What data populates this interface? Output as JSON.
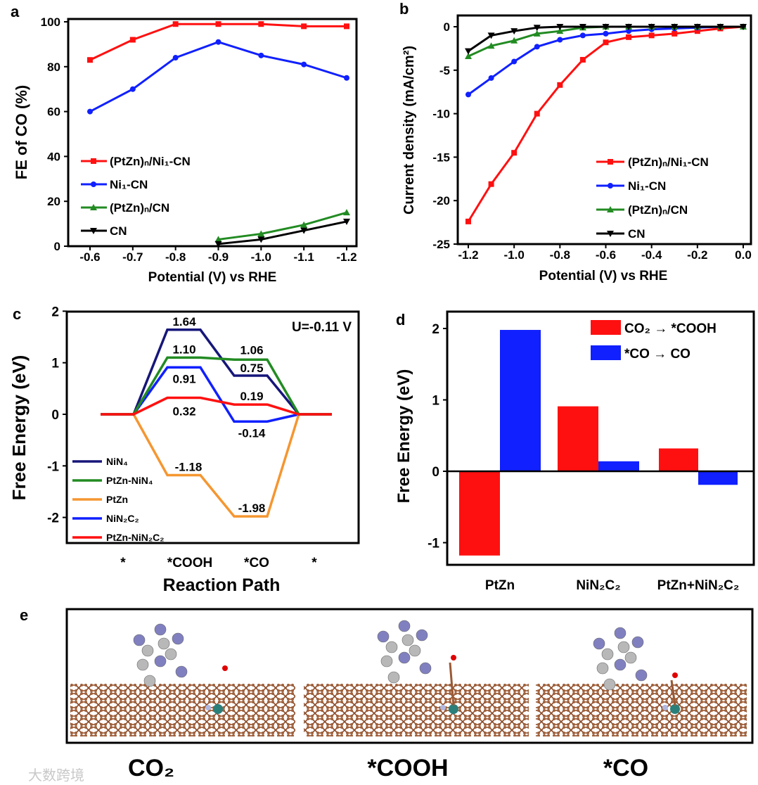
{
  "panel_letters": {
    "a": "a",
    "b": "b",
    "c": "c",
    "d": "d",
    "e": "e"
  },
  "colors": {
    "red": "#ff1010",
    "blue": "#1020ff",
    "green": "#228b22",
    "black": "#000000",
    "navy": "#16167a",
    "orange": "#f59630",
    "teal": "#2a7f7a",
    "carbon": "#9a5a36",
    "pt": "#b8b8b8",
    "zn": "#8080c0",
    "oxygen": "#e00000"
  },
  "chart_data": [
    {
      "id": "a",
      "type": "line",
      "xlabel": "Potential (V) vs RHE",
      "ylabel": "FE of CO (%)",
      "xlim": [
        -0.55,
        -1.25
      ],
      "ylim": [
        0,
        100
      ],
      "x_ticks": [
        "-0.6",
        "-0.7",
        "-0.8",
        "-0.9",
        "-1.0",
        "-1.1",
        "-1.2"
      ],
      "y_ticks": [
        "0",
        "20",
        "40",
        "60",
        "80",
        "100"
      ],
      "legend_position": "center-left",
      "series": [
        {
          "name": "(PtZn)ₙ/Ni₁-CN",
          "color": "red",
          "marker": "square",
          "x": [
            -0.6,
            -0.7,
            -0.8,
            -0.9,
            -1.0,
            -1.1,
            -1.2
          ],
          "values": [
            83,
            92,
            99,
            99,
            99,
            98,
            98
          ]
        },
        {
          "name": "Ni₁-CN",
          "color": "blue",
          "marker": "circle",
          "x": [
            -0.6,
            -0.7,
            -0.8,
            -0.9,
            -1.0,
            -1.1,
            -1.2
          ],
          "values": [
            60,
            70,
            84,
            91,
            85,
            81,
            75
          ]
        },
        {
          "name": "(PtZn)ₙ/CN",
          "color": "green",
          "marker": "triangle-up",
          "x": [
            -0.9,
            -1.0,
            -1.1,
            -1.2
          ],
          "values": [
            3,
            5.5,
            9.5,
            15
          ]
        },
        {
          "name": "CN",
          "color": "black",
          "marker": "triangle-down",
          "x": [
            -0.9,
            -1.0,
            -1.1,
            -1.2
          ],
          "values": [
            1,
            3,
            7,
            11
          ]
        }
      ]
    },
    {
      "id": "b",
      "type": "line",
      "xlabel": "Potential (V) vs RHE",
      "ylabel": "Current density (mA/cm²)",
      "xlim": [
        -1.2,
        0.0
      ],
      "ylim": [
        -25,
        0
      ],
      "x_ticks": [
        "-1.2",
        "-1.0",
        "-0.8",
        "-0.6",
        "-0.4",
        "-0.2",
        "0.0"
      ],
      "y_ticks": [
        "0",
        "-5",
        "-10",
        "-15",
        "-20",
        "-25"
      ],
      "legend_position": "bottom-right",
      "x": [
        -1.2,
        -1.1,
        -1.0,
        -0.9,
        -0.8,
        -0.7,
        -0.6,
        -0.5,
        -0.4,
        -0.3,
        -0.2,
        -0.1,
        0.0
      ],
      "series": [
        {
          "name": "(PtZn)ₙ/Ni₁-CN",
          "color": "red",
          "marker": "square",
          "values": [
            -22.4,
            -18.1,
            -14.5,
            -10.0,
            -6.7,
            -3.8,
            -1.8,
            -1.2,
            -1.0,
            -0.8,
            -0.5,
            -0.2,
            0
          ]
        },
        {
          "name": "Ni₁-CN",
          "color": "blue",
          "marker": "circle",
          "values": [
            -7.8,
            -5.9,
            -4.0,
            -2.3,
            -1.5,
            -1.0,
            -0.8,
            -0.5,
            -0.3,
            -0.2,
            -0.1,
            0,
            0
          ]
        },
        {
          "name": "(PtZn)ₙ/CN",
          "color": "green",
          "marker": "triangle-up",
          "values": [
            -3.4,
            -2.2,
            -1.6,
            -0.8,
            -0.5,
            -0.1,
            0,
            0,
            0,
            0,
            0,
            0,
            0
          ]
        },
        {
          "name": "CN",
          "color": "black",
          "marker": "triangle-down",
          "values": [
            -2.8,
            -1.0,
            -0.5,
            -0.1,
            0,
            0,
            0,
            0,
            0,
            0,
            0,
            0,
            0
          ]
        }
      ]
    },
    {
      "id": "c",
      "type": "line",
      "xlabel": "Reaction Path",
      "ylabel": "Free Energy (eV)",
      "ylim": [
        -2.45,
        2
      ],
      "categories": [
        "*",
        "*COOH",
        "*CO",
        "*"
      ],
      "y_ticks": [
        "2",
        "1",
        "0",
        "-1",
        "-2"
      ],
      "annotation": "U=-0.11 V",
      "legend_position": "bottom-left",
      "series": [
        {
          "name": "NiN₄",
          "color": "navy",
          "values": [
            0,
            1.64,
            0.75,
            0
          ],
          "labels": [
            "1.64",
            "0.75"
          ]
        },
        {
          "name": "PtZn-NiN₄",
          "color": "green",
          "values": [
            0,
            1.1,
            1.06,
            0
          ],
          "labels": [
            "1.10",
            "1.06"
          ]
        },
        {
          "name": "PtZn",
          "color": "orange",
          "values": [
            0,
            -1.18,
            -1.98,
            0
          ],
          "labels": [
            "-1.18",
            "-1.98"
          ]
        },
        {
          "name": "NiN₂C₂",
          "color": "blue",
          "values": [
            0,
            0.91,
            -0.14,
            0
          ],
          "labels": [
            "0.91",
            "-0.14"
          ]
        },
        {
          "name": "PtZn-NiN₂C₂",
          "color": "red",
          "values": [
            0,
            0.32,
            0.19,
            0
          ],
          "labels": [
            "0.32",
            "0.19"
          ]
        }
      ]
    },
    {
      "id": "d",
      "type": "bar",
      "ylabel": "Free Energy (eV)",
      "ylim": [
        -1.3,
        2.24
      ],
      "y_ticks": [
        "2",
        "1",
        "0",
        "-1"
      ],
      "categories": [
        "PtZn",
        "NiN₂C₂",
        "PtZn+NiN₂C₂"
      ],
      "legend_position": "top-right",
      "series": [
        {
          "name": "CO₂ → *COOH",
          "color": "red",
          "values": [
            -1.18,
            0.91,
            0.32
          ]
        },
        {
          "name": "*CO → CO",
          "color": "blue",
          "values": [
            1.98,
            0.14,
            -0.19
          ]
        }
      ]
    }
  ],
  "panel_e": {
    "labels": [
      "CO₂",
      "*COOH",
      "*CO"
    ]
  },
  "watermark": "大数跨境"
}
